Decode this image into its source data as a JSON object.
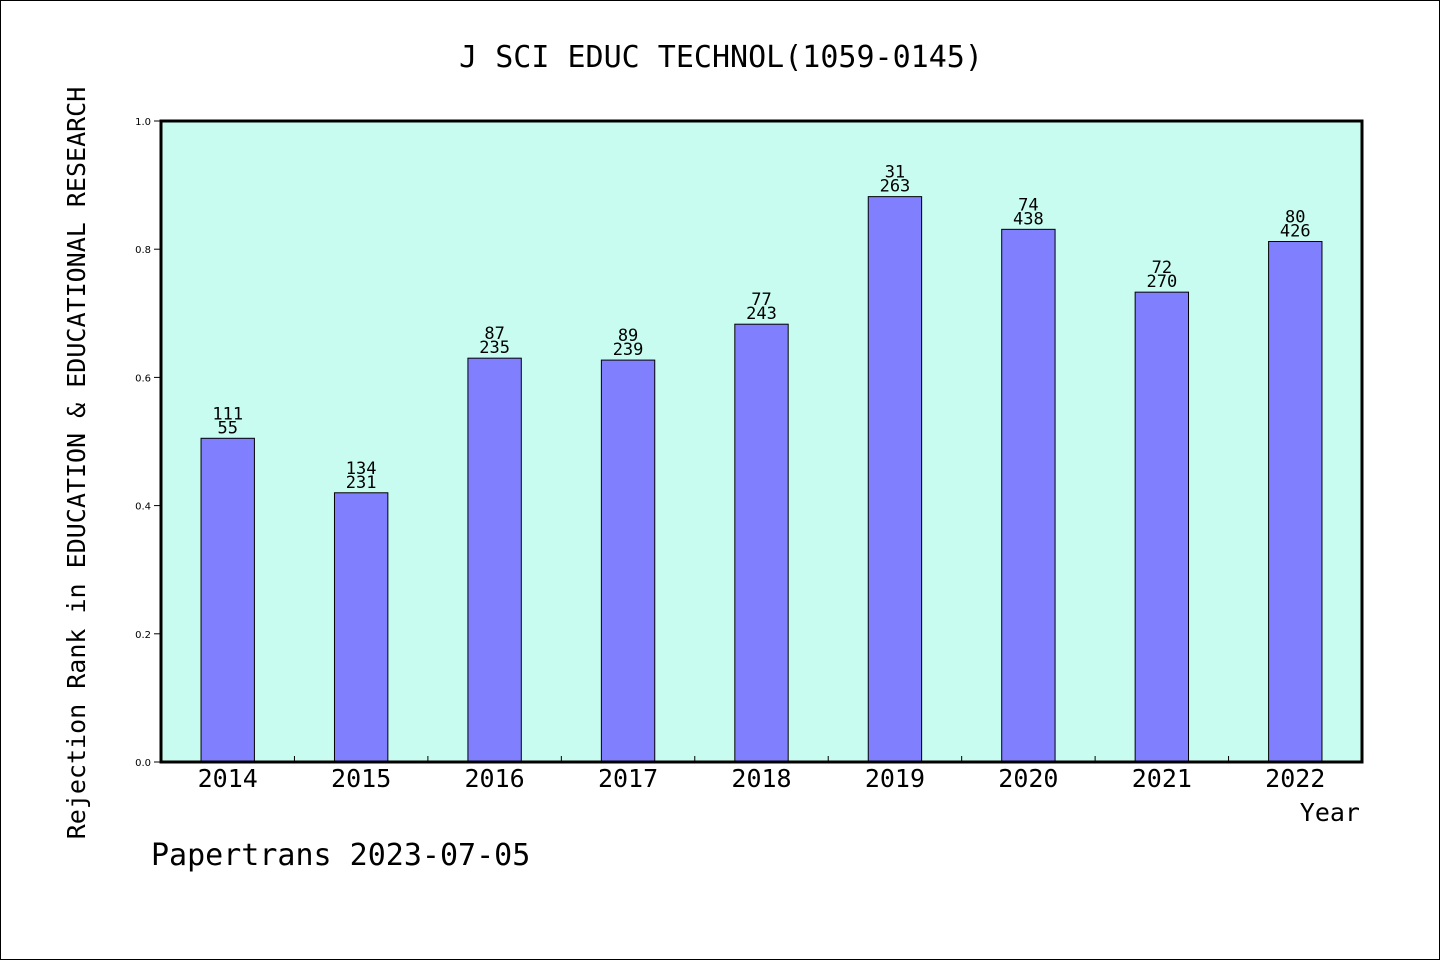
{
  "chart_data": {
    "type": "bar",
    "title": "J SCI EDUC TECHNOL(1059-0145)",
    "xlabel": "Year",
    "ylabel": "Rejection Rank in EDUCATION & EDUCATIONAL RESEARCH",
    "categories": [
      "2014",
      "2015",
      "2016",
      "2017",
      "2018",
      "2019",
      "2020",
      "2021",
      "2022"
    ],
    "values": [
      0.505,
      0.42,
      0.63,
      0.627,
      0.683,
      0.882,
      0.831,
      0.733,
      0.812
    ],
    "label_top": [
      "111",
      "134",
      "87",
      "89",
      "77",
      "31",
      "74",
      "72",
      "80"
    ],
    "label_bottom": [
      "55",
      "231",
      "235",
      "239",
      "243",
      "263",
      "438",
      "270",
      "426"
    ],
    "ylim": [
      0,
      1.0
    ],
    "yticks": [
      "0.0",
      "0.2",
      "0.4",
      "0.6",
      "0.8",
      "1.0"
    ],
    "grid": false,
    "plot_background": "#c8fcf0",
    "bar_color": "#8080ff",
    "bar_edge_color": "#000000"
  },
  "footer": {
    "credit": "Papertrans 2023-07-05"
  }
}
